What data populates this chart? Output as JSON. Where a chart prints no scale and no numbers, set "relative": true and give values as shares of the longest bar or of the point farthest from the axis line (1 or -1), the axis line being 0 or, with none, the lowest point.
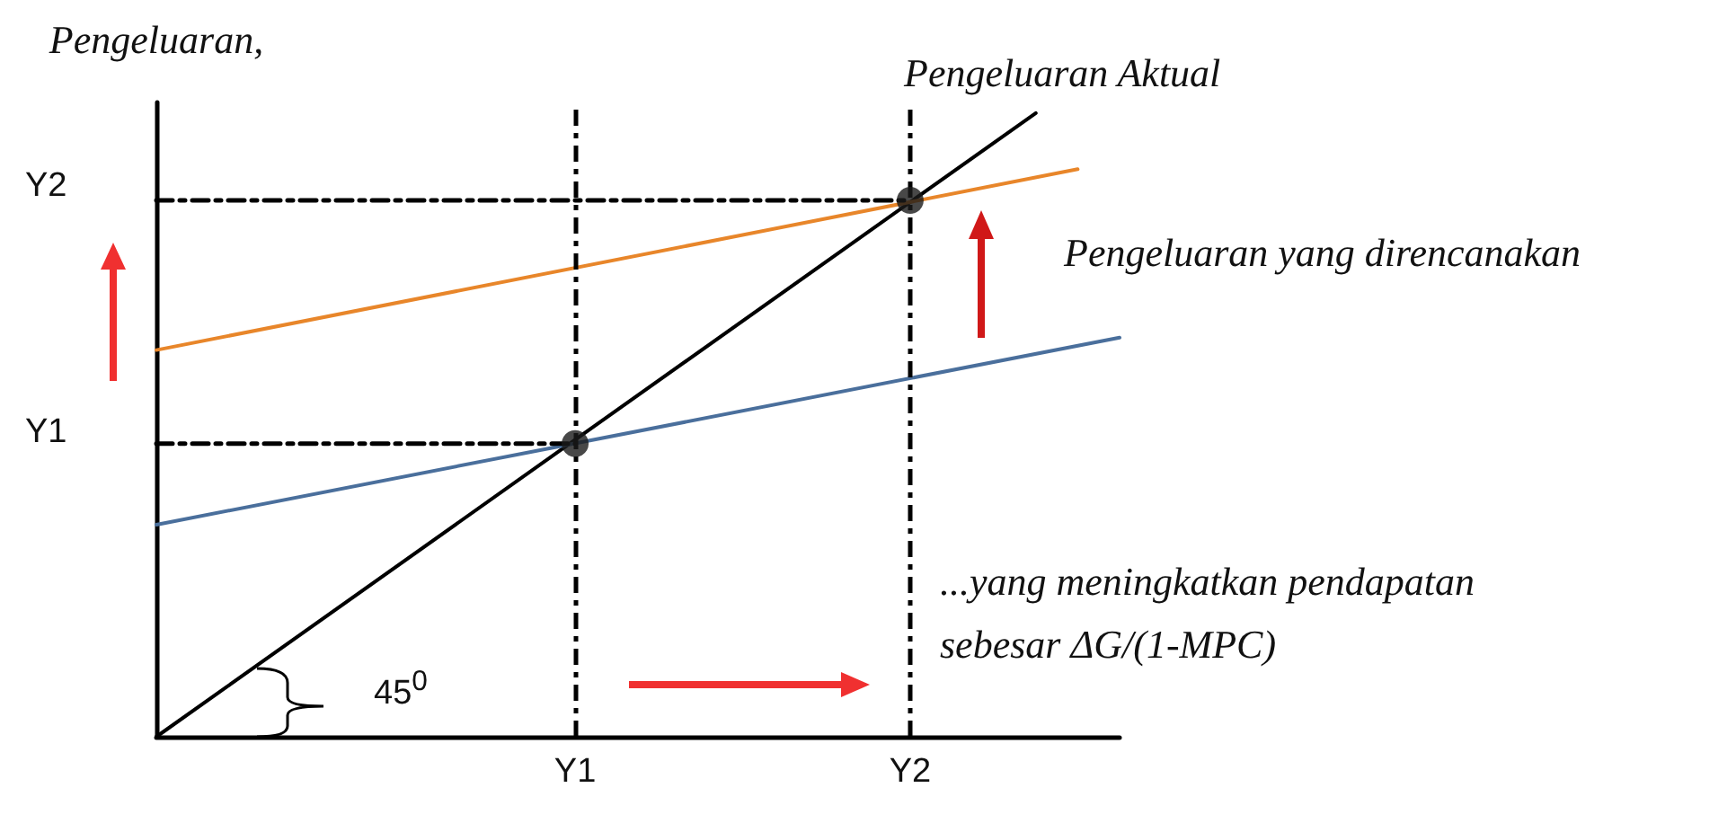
{
  "chart_data": {
    "type": "line",
    "ylabel": "Pengeluaran,",
    "relative": true,
    "annotations": [
      "Pengeluaran Aktual",
      "Pengeluaran yang direncanakan",
      "...yang meningkatkan pendapatan sebesar ΔG/(1-MPC)",
      "45$^{0}$",
      "Y2",
      "Y1"
    ],
    "marker": "none",
    "categories": [
      null,
      null,
      null,
      null,
      null,
      null,
      null,
      null,
      null,
      null,
      "Y1",
      null,
      null,
      null,
      null,
      null,
      null,
      null,
      "Y2",
      null,
      null,
      null,
      null,
      null
    ],
    "ref_lines": [
      {
        "axis": "x",
        "value": "Y1",
        "color": "#000000",
        "line_style": "dashed"
      },
      {
        "axis": "x",
        "value": "Y2",
        "color": "#000000",
        "line_style": "dashed"
      }
    ],
    "series": [
      {
        "color": "#000000",
        "values": [
          0,
          null,
          null,
          null,
          null,
          null,
          null,
          null,
          null,
          null,
          null,
          null,
          null,
          null,
          null,
          null,
          null,
          null,
          null,
          null,
          null,
          1,
          null,
          null
        ]
      },
      {
        "color": "#4a6f9c",
        "values": [
          0.34,
          null,
          null,
          null,
          null,
          null,
          null,
          null,
          null,
          null,
          null,
          null,
          null,
          null,
          null,
          null,
          null,
          null,
          null,
          null,
          null,
          null,
          null,
          0.64
        ]
      },
      {
        "color": "#e8862a",
        "values": [
          0.62,
          null,
          null,
          null,
          null,
          null,
          null,
          null,
          null,
          null,
          null,
          null,
          null,
          null,
          null,
          null,
          null,
          null,
          null,
          null,
          null,
          null,
          0.91,
          null
        ]
      },
      {
        "color": "#000000",
        "line_style": "dashed",
        "values": [
          0.86,
          0.86,
          0.86,
          0.86,
          0.86,
          0.86,
          0.86,
          0.86,
          0.86,
          0.86,
          0.86,
          0.86,
          0.86,
          0.86,
          0.86,
          0.86,
          0.86,
          0.86,
          0.86,
          null,
          null,
          null,
          null,
          null
        ]
      },
      {
        "color": "#000000",
        "line_style": "dashed",
        "values": [
          0.47,
          0.47,
          0.47,
          0.47,
          0.47,
          0.47,
          0.47,
          0.47,
          0.47,
          0.47,
          0.47,
          null,
          null,
          null,
          null,
          null,
          null,
          null,
          null,
          null,
          null,
          null,
          null,
          null
        ]
      },
      {
        "type": "scatter",
        "marker": "circle",
        "color": "#1a1a1a",
        "values": [
          null,
          null,
          null,
          null,
          null,
          null,
          null,
          null,
          null,
          null,
          0.47,
          null,
          null,
          null,
          null,
          null,
          null,
          null,
          0.86,
          null,
          null,
          null,
          null,
          null
        ]
      }
    ]
  }
}
